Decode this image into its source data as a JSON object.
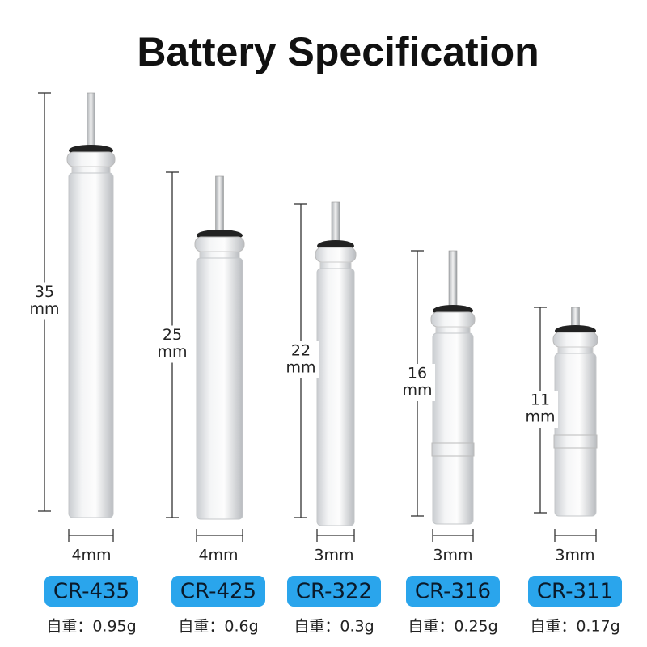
{
  "header": {
    "title": "Battery Specification"
  },
  "batteries": [
    {
      "length": "35",
      "length_unit": "mm",
      "diameter": "4mm",
      "model": "CR-435",
      "weight": "自重：0.95g"
    },
    {
      "length": "25",
      "length_unit": "mm",
      "diameter": "4mm",
      "model": "CR-425",
      "weight": "自重：0.6g"
    },
    {
      "length": "22",
      "length_unit": "mm",
      "diameter": "3mm",
      "model": "CR-322",
      "weight": "自重：0.3g"
    },
    {
      "length": "16",
      "length_unit": "mm",
      "diameter": "3mm",
      "model": "CR-316",
      "weight": "自重：0.25g"
    },
    {
      "length": "11",
      "length_unit": "mm",
      "diameter": "3mm",
      "model": "CR-311",
      "weight": "自重：0.17g"
    }
  ]
}
